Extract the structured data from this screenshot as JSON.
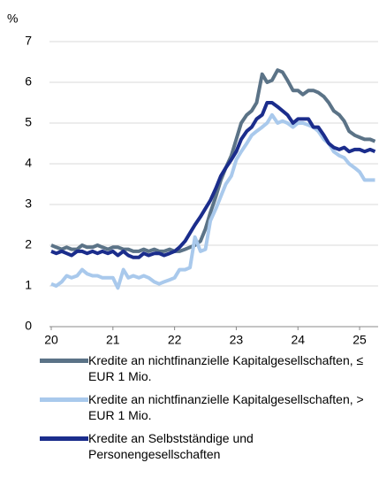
{
  "chart_data": {
    "type": "line",
    "y_axis_label": "%",
    "xlim": [
      20,
      25.3
    ],
    "xticks": [
      20,
      21,
      22,
      23,
      24,
      25
    ],
    "ylim": [
      0,
      7
    ],
    "yticks": [
      0,
      1,
      2,
      3,
      4,
      5,
      6,
      7
    ],
    "grid": true,
    "x": [
      20,
      20.08,
      20.17,
      20.25,
      20.33,
      20.42,
      20.5,
      20.58,
      20.67,
      20.75,
      20.83,
      20.92,
      21,
      21.08,
      21.17,
      21.25,
      21.33,
      21.42,
      21.5,
      21.58,
      21.67,
      21.75,
      21.83,
      21.92,
      22,
      22.08,
      22.17,
      22.25,
      22.33,
      22.42,
      22.5,
      22.58,
      22.67,
      22.75,
      22.83,
      22.92,
      23,
      23.08,
      23.17,
      23.25,
      23.33,
      23.42,
      23.5,
      23.58,
      23.67,
      23.75,
      23.83,
      23.92,
      24,
      24.08,
      24.17,
      24.25,
      24.33,
      24.42,
      24.5,
      24.58,
      24.67,
      24.75,
      24.83,
      24.92,
      25,
      25.08,
      25.17,
      25.25
    ],
    "series": [
      {
        "name": "Kredite an nichtfinanzielle Kapitalgesellschaften, ≤ EUR 1 Mio.",
        "color": "#5b7387",
        "values": [
          2.0,
          1.95,
          1.9,
          1.95,
          1.9,
          1.9,
          2.0,
          1.95,
          1.95,
          2.0,
          1.95,
          1.9,
          1.95,
          1.95,
          1.9,
          1.9,
          1.85,
          1.85,
          1.9,
          1.85,
          1.9,
          1.85,
          1.85,
          1.9,
          1.85,
          1.85,
          1.9,
          1.95,
          2.0,
          2.1,
          2.4,
          2.8,
          3.2,
          3.6,
          3.9,
          4.2,
          4.6,
          5.0,
          5.2,
          5.3,
          5.5,
          6.2,
          6.0,
          6.05,
          6.3,
          6.25,
          6.05,
          5.8,
          5.8,
          5.7,
          5.8,
          5.8,
          5.75,
          5.65,
          5.5,
          5.3,
          5.2,
          5.05,
          4.8,
          4.7,
          4.65,
          4.6,
          4.6,
          4.55
        ]
      },
      {
        "name": "Kredite an nichtfinanzielle Kapitalgesellschaften, > EUR 1 Mio.",
        "color": "#a9c9ec",
        "values": [
          1.05,
          1.0,
          1.1,
          1.25,
          1.2,
          1.25,
          1.4,
          1.3,
          1.25,
          1.25,
          1.2,
          1.2,
          1.2,
          0.95,
          1.4,
          1.2,
          1.25,
          1.2,
          1.25,
          1.2,
          1.1,
          1.05,
          1.1,
          1.15,
          1.2,
          1.4,
          1.4,
          1.45,
          2.2,
          1.85,
          1.9,
          2.6,
          2.9,
          3.2,
          3.5,
          3.7,
          4.1,
          4.3,
          4.5,
          4.7,
          4.8,
          4.9,
          5.0,
          5.2,
          5.0,
          5.05,
          5.0,
          4.9,
          5.0,
          5.0,
          4.95,
          4.9,
          4.8,
          4.6,
          4.5,
          4.3,
          4.2,
          4.15,
          4.0,
          3.9,
          3.8,
          3.6,
          3.6,
          3.6
        ]
      },
      {
        "name": "Kredite an Selbstständige und Personengesellschaften",
        "color": "#1b2d8c",
        "values": [
          1.85,
          1.8,
          1.85,
          1.8,
          1.75,
          1.85,
          1.85,
          1.8,
          1.85,
          1.8,
          1.85,
          1.8,
          1.85,
          1.75,
          1.85,
          1.75,
          1.7,
          1.7,
          1.8,
          1.75,
          1.8,
          1.8,
          1.75,
          1.8,
          1.85,
          1.95,
          2.1,
          2.3,
          2.5,
          2.7,
          2.9,
          3.1,
          3.4,
          3.7,
          3.9,
          4.1,
          4.3,
          4.6,
          4.8,
          4.9,
          5.1,
          5.2,
          5.5,
          5.5,
          5.4,
          5.3,
          5.2,
          5.0,
          5.1,
          5.1,
          5.1,
          4.9,
          4.9,
          4.7,
          4.5,
          4.4,
          4.35,
          4.4,
          4.3,
          4.35,
          4.35,
          4.3,
          4.35,
          4.3
        ]
      }
    ]
  }
}
